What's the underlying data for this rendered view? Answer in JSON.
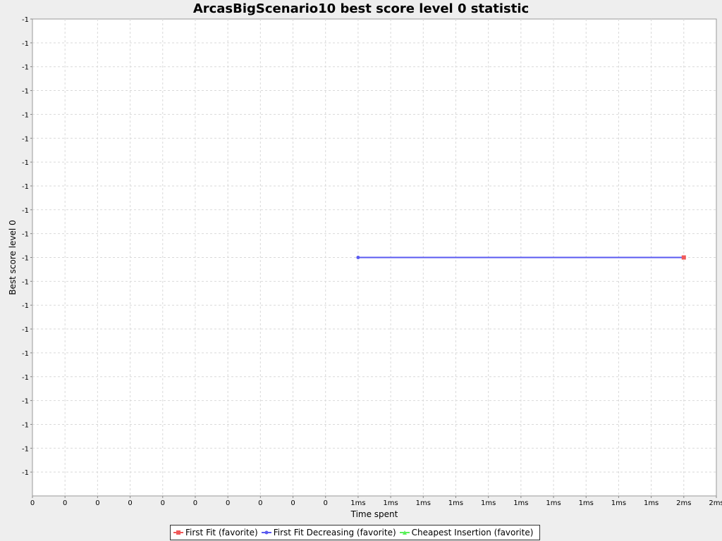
{
  "chart_data": {
    "type": "line",
    "title": "ArcasBigScenario10 best score level 0 statistic",
    "xlabel": "Time spent",
    "ylabel": "Best score level 0",
    "x_tick_labels": [
      "0",
      "0",
      "0",
      "0",
      "0",
      "0",
      "0",
      "0",
      "0",
      "0",
      "1ms",
      "1ms",
      "1ms",
      "1ms",
      "1ms",
      "1ms",
      "1ms",
      "1ms",
      "1ms",
      "1ms",
      "2ms",
      "2ms"
    ],
    "y_tick_labels": [
      "-1",
      "-1",
      "-1",
      "-1",
      "-1",
      "-1",
      "-1",
      "-1",
      "-1",
      "-1",
      "-1",
      "-1",
      "-1",
      "-1",
      "-1",
      "-1",
      "-1",
      "-1",
      "-1",
      "-1"
    ],
    "xlim": [
      0,
      2
    ],
    "grid": true,
    "legend_position": "bottom",
    "series": [
      {
        "name": "First Fit (favorite)",
        "color": "#f05a5a",
        "marker": "square",
        "points": [
          {
            "x": 2,
            "y": -1
          }
        ]
      },
      {
        "name": "First Fit Decreasing (favorite)",
        "color": "#5a5af0",
        "marker": "circle",
        "points": [
          {
            "x": 1,
            "y": -1
          },
          {
            "x": 2,
            "y": -1
          }
        ]
      },
      {
        "name": "Cheapest Insertion (favorite)",
        "color": "#5af05a",
        "marker": "triangle",
        "points": []
      }
    ]
  }
}
